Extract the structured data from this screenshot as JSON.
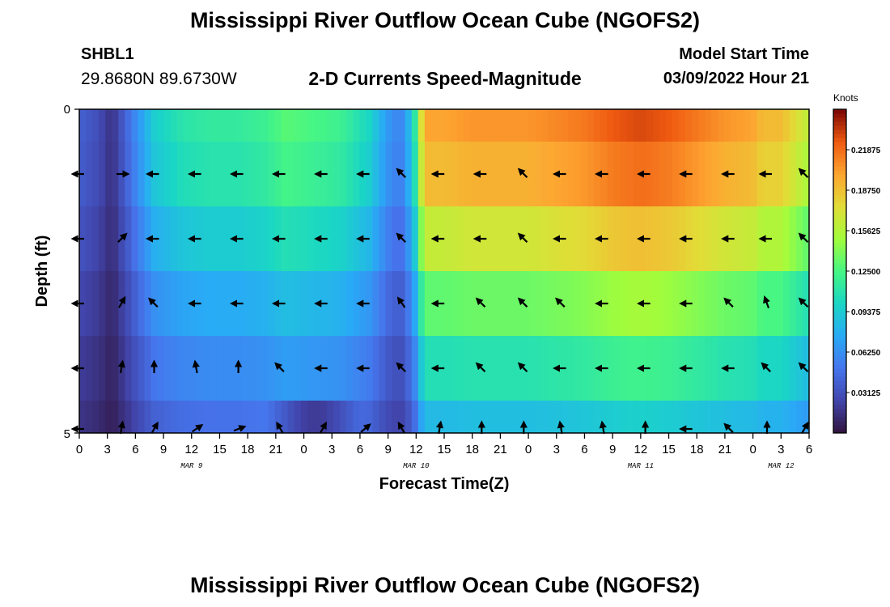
{
  "header": {
    "title": "Mississippi River Outflow Ocean Cube (NGOFS2)",
    "station_id": "SHBL1",
    "coordinates": "29.8680N  89.6730W",
    "subtitle": "2-D Currents Speed-Magnitude",
    "model_start_label": "Model Start Time",
    "model_start_value": "03/09/2022 Hour 21"
  },
  "footer": {
    "title": "Mississippi River Outflow Ocean Cube (NGOFS2)"
  },
  "chart_data": {
    "type": "heatmap",
    "xlabel": "Forecast Time(Z)",
    "ylabel": "Depth (ft)",
    "colorbar_unit": "Knots",
    "colorbar_ticks": [
      "0.03125",
      "0.06250",
      "0.09375",
      "0.12500",
      "0.15625",
      "0.18750",
      "0.21875"
    ],
    "colorbar_range": [
      0,
      0.25
    ],
    "y_ticks": [
      "0",
      "5"
    ],
    "ylim": [
      0,
      5
    ],
    "x_hours_range": [
      0,
      78
    ],
    "x_ticks": [
      "0",
      "3",
      "6",
      "9",
      "12",
      "15",
      "18",
      "21",
      "0",
      "3",
      "6",
      "9",
      "12",
      "15",
      "18",
      "21",
      "0",
      "3",
      "6",
      "9",
      "12",
      "15",
      "18",
      "21",
      "0",
      "3",
      "6"
    ],
    "date_labels": [
      {
        "label": "MAR 9",
        "hour": 12
      },
      {
        "label": "MAR 10",
        "hour": 36
      },
      {
        "label": "MAR 11",
        "hour": 60
      },
      {
        "label": "MAR 12",
        "hour": 75
      }
    ],
    "depth_layers": 5,
    "speed_profile": {
      "hours": [
        0,
        2,
        3.5,
        6,
        8,
        11,
        14,
        17,
        20,
        22,
        25,
        28,
        31,
        32.5,
        33.5,
        34.5,
        35.5,
        36,
        36.5,
        37,
        39,
        42,
        45,
        48,
        51,
        54,
        57,
        60,
        63,
        66,
        69,
        72,
        73,
        75,
        77,
        78
      ],
      "surface": [
        0.04,
        0.03,
        0.015,
        0.06,
        0.095,
        0.11,
        0.115,
        0.115,
        0.12,
        0.13,
        0.125,
        0.12,
        0.1,
        0.075,
        0.06,
        0.06,
        0.09,
        0.12,
        0.17,
        0.2,
        0.2,
        0.205,
        0.205,
        0.205,
        0.21,
        0.215,
        0.225,
        0.23,
        0.225,
        0.215,
        0.205,
        0.2,
        0.19,
        0.19,
        0.17,
        0.16
      ],
      "layer_factors": [
        1.0,
        0.95,
        0.82,
        0.66,
        0.53,
        0.42
      ],
      "bottom_dip": 0.032
    },
    "arrows": {
      "hours": [
        0,
        4.5,
        8,
        12.5,
        17,
        21.5,
        26,
        30.5,
        34.5,
        38.5,
        43,
        47.5,
        51.5,
        56,
        60.5,
        65,
        69.5,
        73.5,
        77.5
      ],
      "directions_deg": [
        [
          180,
          0,
          180,
          180,
          180,
          180,
          180,
          180,
          135,
          180,
          180,
          135,
          180,
          180,
          180,
          180,
          180,
          180,
          135
        ],
        [
          180,
          45,
          180,
          180,
          180,
          180,
          180,
          180,
          135,
          180,
          180,
          135,
          180,
          180,
          180,
          180,
          180,
          180,
          135
        ],
        [
          180,
          60,
          135,
          180,
          180,
          180,
          180,
          180,
          125,
          180,
          135,
          135,
          135,
          180,
          180,
          180,
          135,
          110,
          135
        ],
        [
          180,
          80,
          90,
          100,
          90,
          135,
          180,
          180,
          135,
          180,
          135,
          135,
          180,
          180,
          180,
          180,
          180,
          135,
          135
        ],
        [
          180,
          80,
          60,
          35,
          20,
          120,
          60,
          40,
          120,
          80,
          90,
          90,
          100,
          100,
          90,
          180,
          135,
          90,
          60
        ]
      ]
    }
  }
}
